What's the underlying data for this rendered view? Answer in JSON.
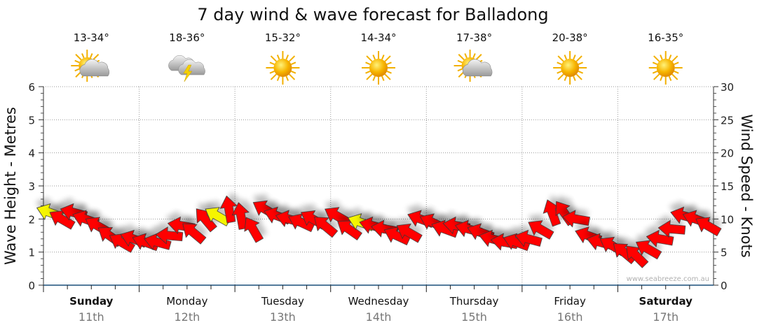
{
  "chart_data": {
    "type": "scatter",
    "title": "7 day wind & wave forecast for Balladong",
    "ylabel_left": "Wave Height - Metres",
    "ylabel_right": "Wind Speed - Knots",
    "ylim_left": [
      0,
      6
    ],
    "yticks_left": [
      "0",
      "1",
      "2",
      "3",
      "4",
      "5",
      "6"
    ],
    "ylim_right": [
      0,
      30
    ],
    "yticks_right": [
      "0",
      "5",
      "10",
      "15",
      "20",
      "25",
      "30"
    ],
    "grid": true,
    "watermark": "www.seabreeze.com.au",
    "days": [
      {
        "day": "Sunday",
        "date": "11th",
        "bold": true,
        "temp": "13-34°",
        "icon": "partly-cloudy"
      },
      {
        "day": "Monday",
        "date": "12th",
        "bold": false,
        "temp": "18-36°",
        "icon": "thunderstorm"
      },
      {
        "day": "Tuesday",
        "date": "13th",
        "bold": false,
        "temp": "15-32°",
        "icon": "sunny"
      },
      {
        "day": "Wednesday",
        "date": "14th",
        "bold": false,
        "temp": "14-34°",
        "icon": "sunny"
      },
      {
        "day": "Thursday",
        "date": "15th",
        "bold": false,
        "temp": "17-38°",
        "icon": "partly-cloudy"
      },
      {
        "day": "Friday",
        "date": "16th",
        "bold": false,
        "temp": "20-38°",
        "icon": "sunny"
      },
      {
        "day": "Saturday",
        "date": "17th",
        "bold": true,
        "temp": "16-35°",
        "icon": "sunny"
      }
    ],
    "wind_series": {
      "name": "Wind (knots, arrow direction in degrees, 0=right 90=up)",
      "hours_step": 3,
      "speed": [
        11,
        10,
        11,
        10,
        9,
        7.5,
        6.5,
        7,
        6.5,
        6.5,
        7.5,
        9,
        8,
        10,
        10.5,
        11.5,
        10.5,
        8.5,
        11.5,
        10.5,
        10,
        9.5,
        10,
        9,
        10.5,
        8.5,
        9.5,
        9,
        8.5,
        7.5,
        8,
        10,
        9.5,
        8.5,
        9,
        8.5,
        8,
        7,
        6.5,
        6.5,
        7,
        8.5,
        11,
        11,
        10,
        7.5,
        6.5,
        6,
        5,
        4.5,
        5.5,
        7,
        8.5,
        10.5,
        10,
        9
      ],
      "direction": [
        160,
        150,
        165,
        160,
        150,
        145,
        150,
        160,
        160,
        165,
        175,
        170,
        140,
        130,
        150,
        100,
        100,
        120,
        150,
        160,
        165,
        155,
        150,
        140,
        150,
        145,
        160,
        165,
        170,
        155,
        150,
        160,
        155,
        160,
        170,
        165,
        160,
        165,
        170,
        160,
        165,
        150,
        110,
        125,
        170,
        160,
        165,
        150,
        140,
        135,
        150,
        170,
        175,
        165,
        160,
        150
      ],
      "highlight": [
        0,
        14,
        26
      ]
    }
  }
}
